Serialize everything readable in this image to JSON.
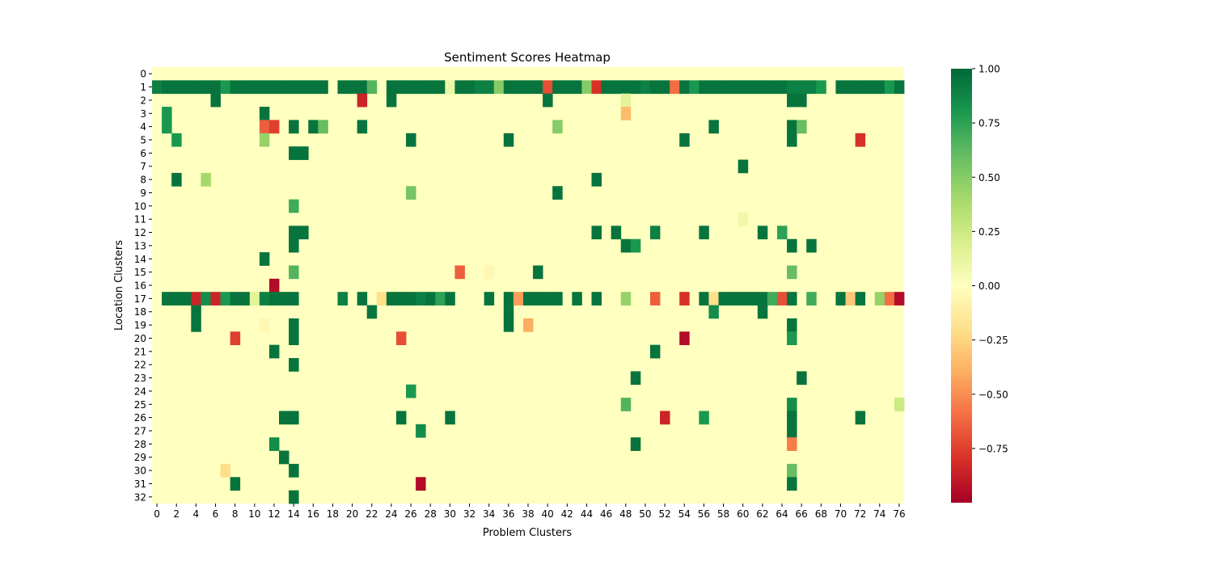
{
  "chart_data": {
    "type": "heatmap",
    "title": "Sentiment Scores Heatmap",
    "xlabel": "Problem Clusters",
    "ylabel": "Location Clusters",
    "n_cols": 77,
    "n_rows": 33,
    "x_tick_labels": [
      "0",
      "2",
      "4",
      "6",
      "8",
      "10",
      "12",
      "14",
      "16",
      "18",
      "20",
      "22",
      "24",
      "26",
      "28",
      "30",
      "32",
      "34",
      "36",
      "38",
      "40",
      "42",
      "44",
      "46",
      "48",
      "50",
      "52",
      "54",
      "56",
      "58",
      "60",
      "62",
      "64",
      "66",
      "68",
      "70",
      "72",
      "74",
      "76"
    ],
    "y_tick_labels": [
      "0",
      "1",
      "2",
      "3",
      "4",
      "5",
      "6",
      "7",
      "8",
      "9",
      "10",
      "11",
      "12",
      "13",
      "14",
      "15",
      "16",
      "17",
      "18",
      "19",
      "20",
      "21",
      "22",
      "23",
      "24",
      "25",
      "26",
      "27",
      "28",
      "29",
      "30",
      "31",
      "32"
    ],
    "colormap": "RdYlGn",
    "vmin": -1.0,
    "vmax": 1.0,
    "colorbar_ticks": [
      1.0,
      0.75,
      0.5,
      0.25,
      0.0,
      -0.25,
      -0.5,
      -0.75
    ],
    "colorbar_tick_labels": [
      "1.00",
      "0.75",
      "0.50",
      "0.25",
      "0.00",
      "−0.25",
      "−0.50",
      "−0.75"
    ],
    "default_value": 0.0,
    "nonzero_cells": [
      [
        1,
        0,
        0.9
      ],
      [
        1,
        1,
        0.95
      ],
      [
        1,
        2,
        0.95
      ],
      [
        1,
        3,
        0.95
      ],
      [
        1,
        4,
        0.95
      ],
      [
        1,
        5,
        0.95
      ],
      [
        1,
        6,
        0.95
      ],
      [
        1,
        7,
        0.8
      ],
      [
        1,
        8,
        0.95
      ],
      [
        1,
        9,
        0.95
      ],
      [
        1,
        10,
        0.95
      ],
      [
        1,
        11,
        0.95
      ],
      [
        1,
        12,
        0.95
      ],
      [
        1,
        13,
        0.95
      ],
      [
        1,
        14,
        0.95
      ],
      [
        1,
        15,
        0.95
      ],
      [
        1,
        16,
        0.95
      ],
      [
        1,
        17,
        0.95
      ],
      [
        1,
        19,
        0.95
      ],
      [
        1,
        20,
        0.95
      ],
      [
        1,
        21,
        0.95
      ],
      [
        1,
        22,
        0.65
      ],
      [
        1,
        24,
        0.95
      ],
      [
        1,
        25,
        0.95
      ],
      [
        1,
        26,
        0.95
      ],
      [
        1,
        27,
        0.95
      ],
      [
        1,
        28,
        0.95
      ],
      [
        1,
        29,
        0.95
      ],
      [
        1,
        30,
        0.1
      ],
      [
        1,
        31,
        0.95
      ],
      [
        1,
        32,
        0.95
      ],
      [
        1,
        33,
        0.9
      ],
      [
        1,
        34,
        0.9
      ],
      [
        1,
        35,
        0.5
      ],
      [
        1,
        36,
        0.95
      ],
      [
        1,
        37,
        0.95
      ],
      [
        1,
        38,
        0.95
      ],
      [
        1,
        39,
        0.95
      ],
      [
        1,
        40,
        -0.7
      ],
      [
        1,
        41,
        0.95
      ],
      [
        1,
        42,
        0.95
      ],
      [
        1,
        43,
        0.95
      ],
      [
        1,
        44,
        0.5
      ],
      [
        1,
        45,
        -0.8
      ],
      [
        1,
        46,
        0.95
      ],
      [
        1,
        47,
        0.95
      ],
      [
        1,
        48,
        0.95
      ],
      [
        1,
        49,
        0.95
      ],
      [
        1,
        50,
        0.9
      ],
      [
        1,
        51,
        0.95
      ],
      [
        1,
        52,
        0.95
      ],
      [
        1,
        53,
        -0.6
      ],
      [
        1,
        54,
        0.95
      ],
      [
        1,
        55,
        0.8
      ],
      [
        1,
        56,
        0.95
      ],
      [
        1,
        57,
        0.95
      ],
      [
        1,
        58,
        0.95
      ],
      [
        1,
        59,
        0.95
      ],
      [
        1,
        60,
        0.95
      ],
      [
        1,
        61,
        0.95
      ],
      [
        1,
        62,
        0.95
      ],
      [
        1,
        63,
        0.95
      ],
      [
        1,
        64,
        0.95
      ],
      [
        1,
        65,
        0.9
      ],
      [
        1,
        66,
        0.9
      ],
      [
        1,
        67,
        0.9
      ],
      [
        1,
        68,
        0.8
      ],
      [
        1,
        70,
        0.95
      ],
      [
        1,
        71,
        0.95
      ],
      [
        1,
        72,
        0.95
      ],
      [
        1,
        73,
        0.95
      ],
      [
        1,
        74,
        0.95
      ],
      [
        1,
        75,
        0.8
      ],
      [
        1,
        76,
        0.95
      ],
      [
        2,
        6,
        0.95
      ],
      [
        2,
        21,
        -0.85
      ],
      [
        2,
        24,
        0.95
      ],
      [
        2,
        40,
        0.95
      ],
      [
        2,
        48,
        0.15
      ],
      [
        2,
        65,
        0.95
      ],
      [
        2,
        66,
        0.95
      ],
      [
        3,
        1,
        0.8
      ],
      [
        3,
        11,
        0.95
      ],
      [
        3,
        48,
        -0.35
      ],
      [
        4,
        1,
        0.8
      ],
      [
        4,
        11,
        -0.65
      ],
      [
        4,
        12,
        -0.75
      ],
      [
        4,
        14,
        0.95
      ],
      [
        4,
        16,
        0.95
      ],
      [
        4,
        17,
        0.6
      ],
      [
        4,
        21,
        0.95
      ],
      [
        4,
        41,
        0.5
      ],
      [
        4,
        57,
        0.95
      ],
      [
        4,
        65,
        0.95
      ],
      [
        4,
        66,
        0.6
      ],
      [
        5,
        2,
        0.8
      ],
      [
        5,
        11,
        0.45
      ],
      [
        5,
        26,
        0.95
      ],
      [
        5,
        36,
        0.95
      ],
      [
        5,
        54,
        0.95
      ],
      [
        5,
        65,
        0.95
      ],
      [
        5,
        72,
        -0.8
      ],
      [
        6,
        14,
        0.95
      ],
      [
        6,
        15,
        0.95
      ],
      [
        7,
        60,
        0.95
      ],
      [
        8,
        2,
        0.95
      ],
      [
        8,
        5,
        0.4
      ],
      [
        8,
        45,
        0.95
      ],
      [
        9,
        26,
        0.55
      ],
      [
        9,
        41,
        0.95
      ],
      [
        10,
        14,
        0.7
      ],
      [
        11,
        60,
        0.08
      ],
      [
        12,
        14,
        0.95
      ],
      [
        12,
        15,
        0.95
      ],
      [
        12,
        45,
        0.95
      ],
      [
        12,
        47,
        0.95
      ],
      [
        12,
        51,
        0.9
      ],
      [
        12,
        56,
        0.95
      ],
      [
        12,
        62,
        0.95
      ],
      [
        12,
        64,
        0.75
      ],
      [
        13,
        14,
        0.95
      ],
      [
        13,
        48,
        0.95
      ],
      [
        13,
        49,
        0.8
      ],
      [
        13,
        65,
        0.95
      ],
      [
        13,
        67,
        0.95
      ],
      [
        14,
        11,
        0.95
      ],
      [
        15,
        14,
        0.65
      ],
      [
        15,
        31,
        -0.65
      ],
      [
        15,
        34,
        -0.05
      ],
      [
        15,
        39,
        0.95
      ],
      [
        15,
        65,
        0.6
      ],
      [
        16,
        12,
        -0.95
      ],
      [
        17,
        1,
        0.95
      ],
      [
        17,
        2,
        0.95
      ],
      [
        17,
        3,
        0.95
      ],
      [
        17,
        4,
        -0.85
      ],
      [
        17,
        5,
        0.85
      ],
      [
        17,
        6,
        -0.85
      ],
      [
        17,
        7,
        0.8
      ],
      [
        17,
        8,
        0.95
      ],
      [
        17,
        9,
        0.95
      ],
      [
        17,
        10,
        0.15
      ],
      [
        17,
        11,
        0.9
      ],
      [
        17,
        12,
        0.95
      ],
      [
        17,
        13,
        0.95
      ],
      [
        17,
        14,
        0.95
      ],
      [
        17,
        19,
        0.9
      ],
      [
        17,
        21,
        0.95
      ],
      [
        17,
        23,
        -0.2
      ],
      [
        17,
        24,
        0.95
      ],
      [
        17,
        25,
        0.95
      ],
      [
        17,
        26,
        0.95
      ],
      [
        17,
        27,
        0.9
      ],
      [
        17,
        28,
        0.95
      ],
      [
        17,
        29,
        0.75
      ],
      [
        17,
        30,
        0.95
      ],
      [
        17,
        34,
        0.95
      ],
      [
        17,
        36,
        0.95
      ],
      [
        17,
        37,
        -0.45
      ],
      [
        17,
        38,
        0.95
      ],
      [
        17,
        39,
        0.95
      ],
      [
        17,
        40,
        0.95
      ],
      [
        17,
        41,
        0.95
      ],
      [
        17,
        43,
        0.95
      ],
      [
        17,
        45,
        0.95
      ],
      [
        17,
        48,
        0.45
      ],
      [
        17,
        51,
        -0.65
      ],
      [
        17,
        54,
        -0.8
      ],
      [
        17,
        56,
        0.95
      ],
      [
        17,
        57,
        -0.2
      ],
      [
        17,
        58,
        0.95
      ],
      [
        17,
        59,
        0.95
      ],
      [
        17,
        60,
        0.95
      ],
      [
        17,
        61,
        0.95
      ],
      [
        17,
        62,
        0.95
      ],
      [
        17,
        63,
        0.7
      ],
      [
        17,
        64,
        -0.7
      ],
      [
        17,
        65,
        0.95
      ],
      [
        17,
        67,
        0.7
      ],
      [
        17,
        70,
        0.95
      ],
      [
        17,
        71,
        -0.3
      ],
      [
        17,
        72,
        0.95
      ],
      [
        17,
        74,
        0.45
      ],
      [
        17,
        75,
        -0.6
      ],
      [
        17,
        76,
        -0.95
      ],
      [
        18,
        4,
        0.95
      ],
      [
        18,
        22,
        0.95
      ],
      [
        18,
        36,
        0.95
      ],
      [
        18,
        57,
        0.85
      ],
      [
        18,
        62,
        0.95
      ],
      [
        19,
        4,
        0.95
      ],
      [
        19,
        11,
        -0.05
      ],
      [
        19,
        14,
        0.95
      ],
      [
        19,
        36,
        0.95
      ],
      [
        19,
        38,
        -0.4
      ],
      [
        19,
        65,
        0.95
      ],
      [
        20,
        8,
        -0.75
      ],
      [
        20,
        14,
        0.95
      ],
      [
        20,
        25,
        -0.7
      ],
      [
        20,
        54,
        -0.95
      ],
      [
        20,
        65,
        0.8
      ],
      [
        21,
        12,
        0.95
      ],
      [
        21,
        51,
        0.95
      ],
      [
        22,
        14,
        0.95
      ],
      [
        23,
        49,
        0.95
      ],
      [
        23,
        66,
        0.95
      ],
      [
        24,
        26,
        0.8
      ],
      [
        25,
        48,
        0.65
      ],
      [
        25,
        65,
        0.85
      ],
      [
        25,
        76,
        0.25
      ],
      [
        26,
        13,
        0.95
      ],
      [
        26,
        14,
        0.95
      ],
      [
        26,
        25,
        0.95
      ],
      [
        26,
        30,
        0.95
      ],
      [
        26,
        52,
        -0.85
      ],
      [
        26,
        56,
        0.8
      ],
      [
        26,
        65,
        0.95
      ],
      [
        26,
        72,
        0.95
      ],
      [
        27,
        27,
        0.85
      ],
      [
        27,
        65,
        0.95
      ],
      [
        28,
        12,
        0.85
      ],
      [
        28,
        49,
        0.95
      ],
      [
        28,
        65,
        -0.55
      ],
      [
        29,
        13,
        0.95
      ],
      [
        30,
        7,
        -0.2
      ],
      [
        30,
        14,
        0.95
      ],
      [
        30,
        65,
        0.6
      ],
      [
        31,
        8,
        0.95
      ],
      [
        31,
        27,
        -0.95
      ],
      [
        31,
        65,
        0.95
      ],
      [
        32,
        14,
        0.95
      ]
    ]
  }
}
